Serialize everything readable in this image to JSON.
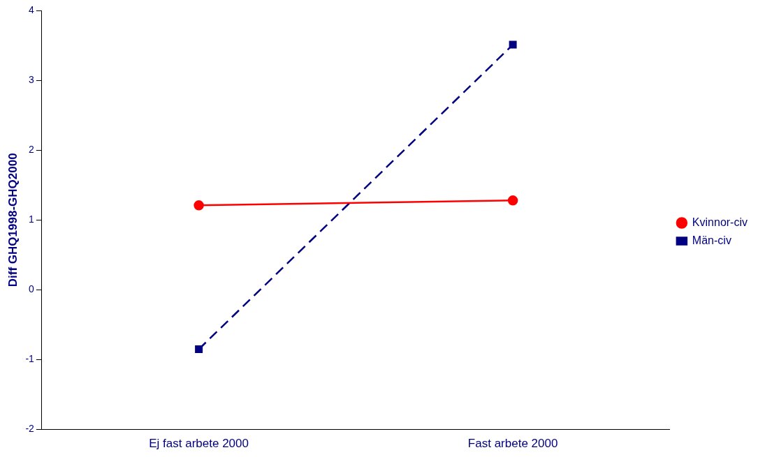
{
  "chart_data": {
    "type": "line",
    "ylabel": "Diff GHQ1998-GHQ2000",
    "categories": [
      "Ej fast arbete 2000",
      "Fast arbete 2000"
    ],
    "series": [
      {
        "name": "Kvinnor-civ",
        "color": "#ff0000",
        "values": [
          1.21,
          1.28
        ],
        "marker": "circle",
        "line_style": "solid"
      },
      {
        "name": "Män-civ",
        "color": "#000080",
        "values": [
          -0.85,
          3.51
        ],
        "marker": "square",
        "line_style": "dashed"
      }
    ],
    "ylim": [
      -2,
      4
    ],
    "yticks": [
      -2,
      -1,
      0,
      1,
      2,
      3,
      4
    ],
    "grid": false,
    "legend": "right"
  }
}
